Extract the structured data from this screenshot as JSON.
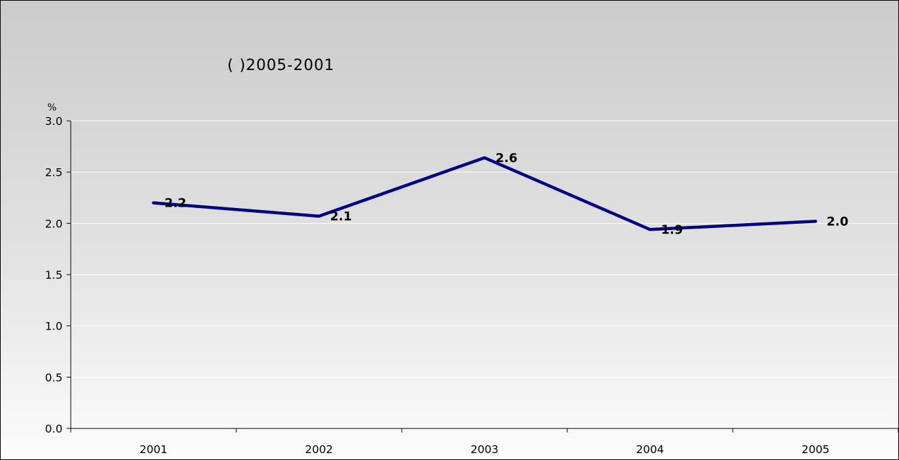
{
  "chart_data": {
    "type": "line",
    "title": "( )2005-2001",
    "ylabel": "%",
    "xlabel": "",
    "categories": [
      "2001",
      "2002",
      "2003",
      "2004",
      "2005"
    ],
    "series": [
      {
        "values": [
          2.2,
          2.07,
          2.64,
          1.94,
          2.02
        ]
      }
    ],
    "data_labels": [
      "2.2",
      "2.1",
      "2.6",
      "1.9",
      "2.0"
    ],
    "y_ticks": [
      "0.0",
      "0.5",
      "1.0",
      "1.5",
      "2.0",
      "2.5",
      "3.0"
    ],
    "ylim": [
      0,
      3.0
    ],
    "grid": true,
    "legend": "none",
    "line_color": "#000080",
    "gridline_color": "#ffffff",
    "background": "gray-gradient"
  }
}
